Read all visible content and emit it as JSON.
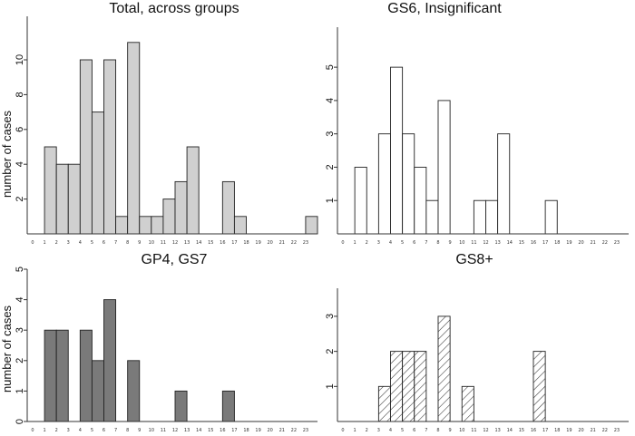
{
  "chart_data": [
    {
      "type": "bar",
      "title": "Total, across groups",
      "ylabel": "number of cases",
      "categories": [
        "0",
        "1",
        "2",
        "3",
        "4",
        "5",
        "6",
        "7",
        "8",
        "9",
        "10",
        "11",
        "12",
        "13",
        "14",
        "15",
        "16",
        "17",
        "18",
        "19",
        "20",
        "21",
        "22",
        "23"
      ],
      "values": [
        0,
        5,
        4,
        4,
        10,
        7,
        10,
        1,
        11,
        1,
        1,
        2,
        3,
        5,
        0,
        0,
        3,
        1,
        0,
        0,
        0,
        0,
        0,
        1
      ],
      "yticks": [
        "2",
        "4",
        "6",
        "8",
        "10"
      ],
      "ylim": [
        0,
        12.5
      ],
      "fill": "#d0d0d0",
      "pattern": "solid"
    },
    {
      "type": "bar",
      "title": "GS6, Insignificant",
      "ylabel": "",
      "categories": [
        "0",
        "1",
        "2",
        "3",
        "4",
        "5",
        "6",
        "7",
        "8",
        "9",
        "10",
        "11",
        "12",
        "13",
        "14",
        "15",
        "16",
        "17",
        "18",
        "19",
        "20",
        "21",
        "22",
        "23"
      ],
      "values": [
        0,
        2,
        0,
        3,
        5,
        3,
        2,
        1,
        4,
        0,
        0,
        1,
        1,
        3,
        0,
        0,
        0,
        1,
        0,
        0,
        0,
        0,
        0,
        0
      ],
      "yticks": [
        "1",
        "2",
        "3",
        "4",
        "5"
      ],
      "ylim": [
        0,
        6.2
      ],
      "fill": "#ffffff",
      "pattern": "solid"
    },
    {
      "type": "bar",
      "title": "GP4, GS7",
      "ylabel": "number of cases",
      "categories": [
        "0",
        "1",
        "2",
        "3",
        "4",
        "5",
        "6",
        "7",
        "8",
        "9",
        "10",
        "11",
        "12",
        "13",
        "14",
        "15",
        "16",
        "17",
        "18",
        "19",
        "20",
        "21",
        "22",
        "23"
      ],
      "values": [
        0,
        3,
        3,
        0,
        3,
        2,
        4,
        0,
        2,
        0,
        0,
        0,
        1,
        0,
        0,
        0,
        1,
        0,
        0,
        0,
        0,
        0,
        0,
        0
      ],
      "yticks": [
        "0",
        "1",
        "2",
        "3",
        "4",
        "5"
      ],
      "ylim": [
        0,
        5
      ],
      "fill": "#7a7a7a",
      "pattern": "solid"
    },
    {
      "type": "bar",
      "title": "GS8+",
      "ylabel": "",
      "categories": [
        "0",
        "1",
        "2",
        "3",
        "4",
        "5",
        "6",
        "7",
        "8",
        "9",
        "10",
        "11",
        "12",
        "13",
        "14",
        "15",
        "16",
        "17",
        "18",
        "19",
        "20",
        "21",
        "22",
        "23"
      ],
      "values": [
        0,
        0,
        0,
        1,
        2,
        2,
        2,
        0,
        3,
        0,
        1,
        0,
        0,
        0,
        0,
        0,
        2,
        0,
        0,
        0,
        0,
        0,
        0,
        0
      ],
      "yticks": [
        "1",
        "2",
        "3"
      ],
      "ylim": [
        0,
        3.8
      ],
      "fill": "#ffffff",
      "pattern": "hatch"
    }
  ]
}
